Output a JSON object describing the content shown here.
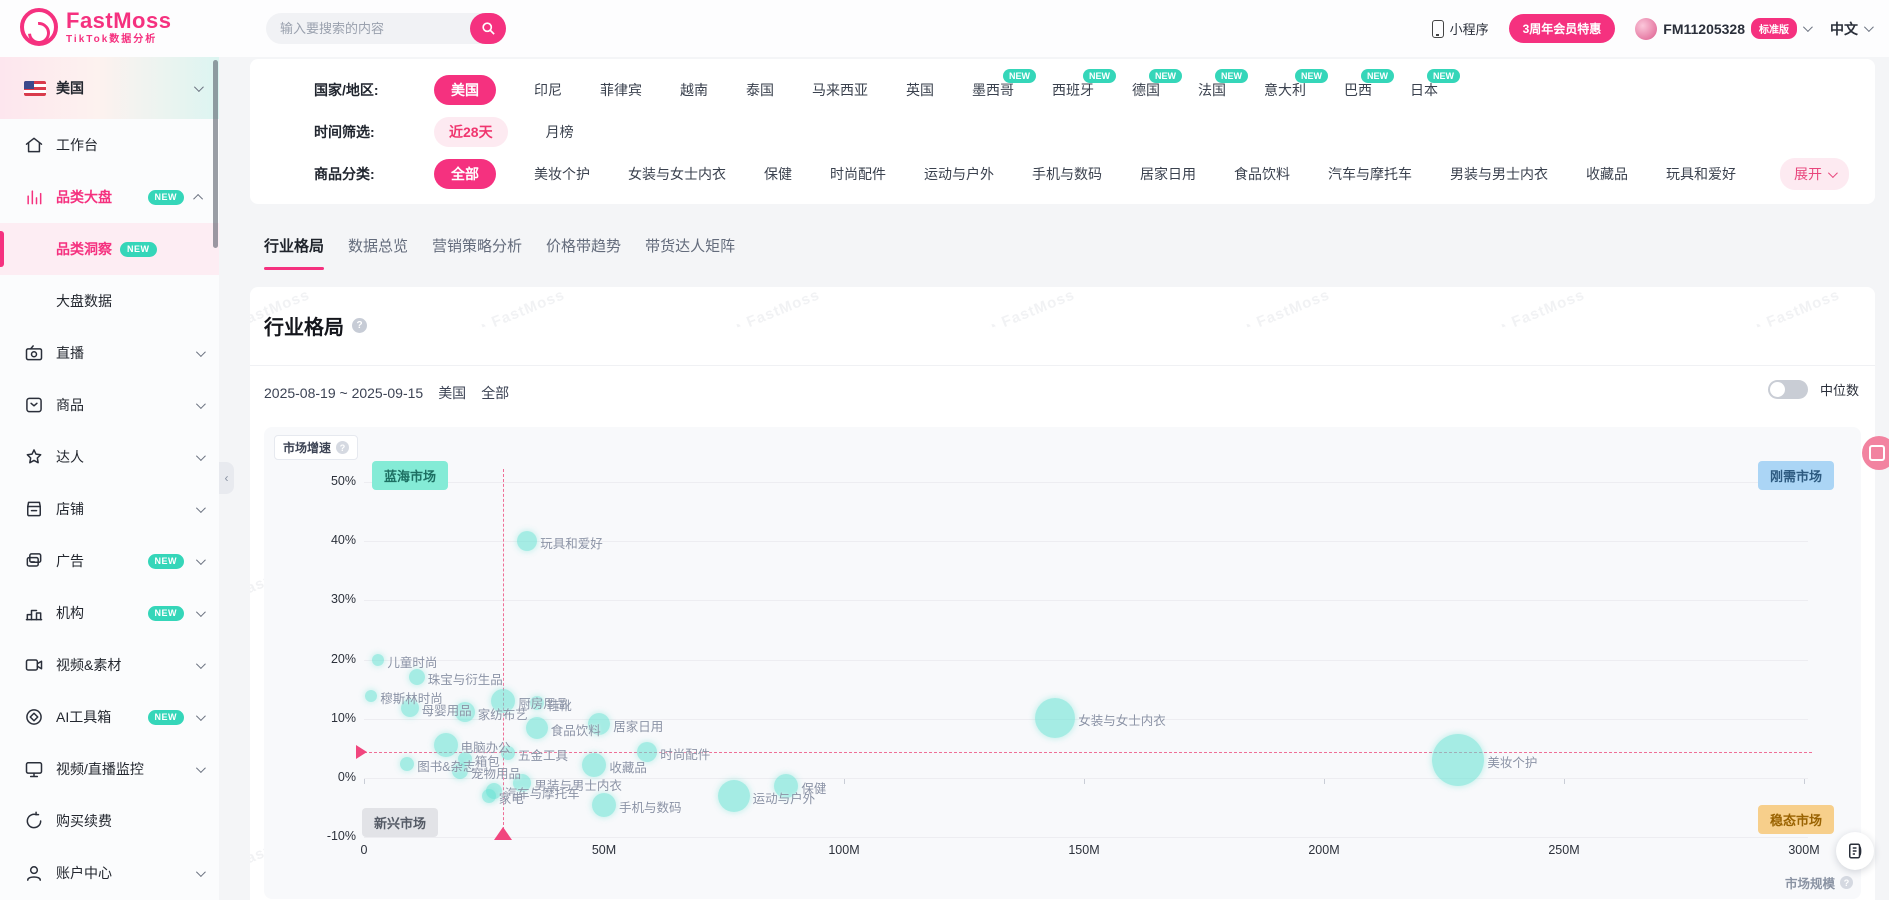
{
  "header": {
    "logo_title": "FastMoss",
    "logo_subtitle": "TikTok数据分析",
    "search_placeholder": "输入要搜索的内容",
    "mini_program": "小程序",
    "promo": "3周年会员特惠",
    "user_id": "FM11205328",
    "plan_badge": "标准版",
    "language": "中文"
  },
  "sidebar": {
    "country": "美国",
    "items": [
      {
        "label": "工作台",
        "icon": "home-icon"
      },
      {
        "label": "品类大盘",
        "icon": "chart-icon",
        "badge": "NEW",
        "chevron": "up",
        "active": true,
        "children": [
          {
            "label": "品类洞察",
            "badge": "NEW",
            "active": true
          },
          {
            "label": "大盘数据"
          }
        ]
      },
      {
        "label": "直播",
        "icon": "live-icon",
        "chevron": "down"
      },
      {
        "label": "商品",
        "icon": "product-icon",
        "chevron": "down"
      },
      {
        "label": "达人",
        "icon": "creator-icon",
        "chevron": "down"
      },
      {
        "label": "店铺",
        "icon": "shop-icon",
        "chevron": "down"
      },
      {
        "label": "广告",
        "icon": "ads-icon",
        "badge": "NEW",
        "chevron": "down"
      },
      {
        "label": "机构",
        "icon": "agency-icon",
        "badge": "NEW",
        "chevron": "down"
      },
      {
        "label": "视频&素材",
        "icon": "video-icon",
        "chevron": "down"
      },
      {
        "label": "AI工具箱",
        "icon": "ai-icon",
        "badge": "NEW",
        "chevron": "down"
      },
      {
        "label": "视频/直播监控",
        "icon": "monitor-icon",
        "chevron": "down"
      },
      {
        "label": "购买续费",
        "icon": "renew-icon"
      },
      {
        "label": "账户中心",
        "icon": "account-icon",
        "chevron": "down"
      }
    ]
  },
  "filters": {
    "rows": [
      {
        "label": "国家/地区:",
        "options": [
          {
            "label": "美国",
            "selected": true
          },
          {
            "label": "印尼"
          },
          {
            "label": "菲律宾"
          },
          {
            "label": "越南"
          },
          {
            "label": "泰国"
          },
          {
            "label": "马来西亚"
          },
          {
            "label": "英国"
          },
          {
            "label": "墨西哥",
            "badge": "NEW"
          },
          {
            "label": "西班牙",
            "badge": "NEW"
          },
          {
            "label": "德国",
            "badge": "NEW"
          },
          {
            "label": "法国",
            "badge": "NEW"
          },
          {
            "label": "意大利",
            "badge": "NEW"
          },
          {
            "label": "巴西",
            "badge": "NEW"
          },
          {
            "label": "日本",
            "badge": "NEW"
          }
        ]
      },
      {
        "label": "时间筛选:",
        "options": [
          {
            "label": "近28天",
            "selected_light": true
          },
          {
            "label": "月榜"
          }
        ]
      },
      {
        "label": "商品分类:",
        "options": [
          {
            "label": "全部",
            "selected": true
          },
          {
            "label": "美妆个护"
          },
          {
            "label": "女装与女士内衣"
          },
          {
            "label": "保健"
          },
          {
            "label": "时尚配件"
          },
          {
            "label": "运动与户外"
          },
          {
            "label": "手机与数码"
          },
          {
            "label": "居家日用"
          },
          {
            "label": "食品饮料"
          },
          {
            "label": "汽车与摩托车"
          },
          {
            "label": "男装与男士内衣"
          },
          {
            "label": "收藏品"
          },
          {
            "label": "玩具和爱好"
          }
        ]
      }
    ],
    "expand_label": "展开"
  },
  "tabs": {
    "active_index": 0,
    "items": [
      "行业格局",
      "数据总览",
      "营销策略分析",
      "价格带趋势",
      "带货达人矩阵"
    ]
  },
  "section": {
    "title": "行业格局",
    "date_range": "2025-08-19 ~ 2025-09-15",
    "country": "美国",
    "category": "全部",
    "toggle_label": "中位数"
  },
  "watermark": "FastMoss",
  "chart_data": {
    "type": "scatter",
    "title": "行业格局",
    "xlabel": "市场规模",
    "ylabel": "市场增速",
    "x_ticks": [
      "0",
      "50M",
      "100M",
      "150M",
      "200M",
      "250M",
      "300M"
    ],
    "y_ticks": [
      "50%",
      "40%",
      "30%",
      "20%",
      "10%",
      "0%",
      "-10%"
    ],
    "x_range_m": [
      0,
      300
    ],
    "y_range_pct": [
      -10,
      50
    ],
    "grid": true,
    "quadrants": {
      "top_left": "蓝海市场",
      "top_right": "刚需市场",
      "bottom_left": "新兴市场",
      "bottom_right": "稳态市场"
    },
    "reference_lines": {
      "market_size_m": 29,
      "growth_pct": 4.4
    },
    "points": [
      {
        "name": "玩具和爱好",
        "market_size_m": 34,
        "growth_pct": 40,
        "r": 10
      },
      {
        "name": "儿童时尚",
        "market_size_m": 3,
        "growth_pct": 20,
        "r": 6
      },
      {
        "name": "珠宝与衍生品",
        "market_size_m": 11,
        "growth_pct": 17,
        "r": 8
      },
      {
        "name": "穆斯林时尚",
        "market_size_m": 1.5,
        "growth_pct": 13.8,
        "r": 6
      },
      {
        "name": "母婴用品",
        "market_size_m": 9.5,
        "growth_pct": 11.8,
        "r": 9
      },
      {
        "name": "厨房用品",
        "market_size_m": 29,
        "growth_pct": 13,
        "r": 12
      },
      {
        "name": "鞋靴",
        "market_size_m": 36,
        "growth_pct": 12.6,
        "r": 7
      },
      {
        "name": "家纺布艺",
        "market_size_m": 21,
        "growth_pct": 11.2,
        "r": 10
      },
      {
        "name": "食品饮料",
        "market_size_m": 36,
        "growth_pct": 8.4,
        "r": 11
      },
      {
        "name": "居家日用",
        "market_size_m": 49,
        "growth_pct": 9.2,
        "r": 11
      },
      {
        "name": "电脑办公",
        "market_size_m": 17,
        "growth_pct": 5.5,
        "r": 12
      },
      {
        "name": "五金工具",
        "market_size_m": 30,
        "growth_pct": 4.2,
        "r": 7
      },
      {
        "name": "箱包",
        "market_size_m": 21,
        "growth_pct": 3.2,
        "r": 7
      },
      {
        "name": "时尚配件",
        "market_size_m": 59,
        "growth_pct": 4.4,
        "r": 10
      },
      {
        "name": "图书&杂志",
        "market_size_m": 9,
        "growth_pct": 2.4,
        "r": 7
      },
      {
        "name": "宠物用品",
        "market_size_m": 20,
        "growth_pct": 1.2,
        "r": 8
      },
      {
        "name": "收藏品",
        "market_size_m": 48,
        "growth_pct": 2.2,
        "r": 12
      },
      {
        "name": "男装与男士内衣",
        "market_size_m": 33,
        "growth_pct": -0.9,
        "r": 9
      },
      {
        "name": "汽车与摩托车",
        "market_size_m": 27,
        "growth_pct": -2.2,
        "r": 8
      },
      {
        "name": "家电",
        "market_size_m": 26,
        "growth_pct": -3,
        "r": 7
      },
      {
        "name": "手机与数码",
        "market_size_m": 50,
        "growth_pct": -4.6,
        "r": 12
      },
      {
        "name": "保健",
        "market_size_m": 88,
        "growth_pct": -1.3,
        "r": 12
      },
      {
        "name": "运动与户外",
        "market_size_m": 77,
        "growth_pct": -3,
        "r": 16
      },
      {
        "name": "女装与女士内衣",
        "market_size_m": 144,
        "growth_pct": 10.2,
        "r": 20
      },
      {
        "name": "美妆个护",
        "market_size_m": 228,
        "growth_pct": 3,
        "r": 26
      }
    ]
  }
}
